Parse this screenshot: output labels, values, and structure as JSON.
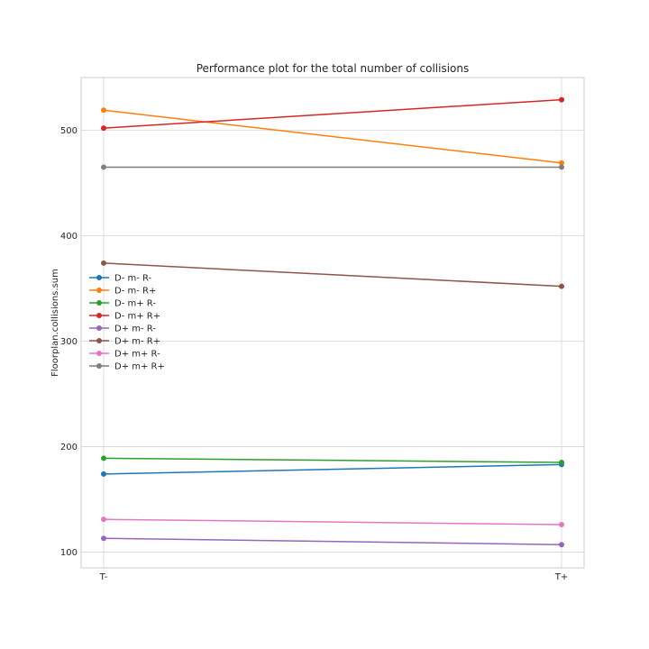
{
  "chart_data": {
    "type": "line",
    "title": "Performance plot for the total number of collisions",
    "xlabel": "",
    "ylabel": "Floorplan.collisions.sum",
    "categories": [
      "T-",
      "T+"
    ],
    "ylim": [
      85,
      550
    ],
    "yticks": [
      100,
      200,
      300,
      400,
      500
    ],
    "grid": true,
    "legend_position": "center-left",
    "series": [
      {
        "name": "D- m- R-",
        "values": [
          174,
          183
        ],
        "color": "#1f77b4"
      },
      {
        "name": "D- m- R+",
        "values": [
          519,
          469
        ],
        "color": "#ff7f0e"
      },
      {
        "name": "D- m+ R-",
        "values": [
          189,
          185
        ],
        "color": "#2ca02c"
      },
      {
        "name": "D- m+ R+",
        "values": [
          502,
          529
        ],
        "color": "#d62728"
      },
      {
        "name": "D+ m- R-",
        "values": [
          113,
          107
        ],
        "color": "#9467bd"
      },
      {
        "name": "D+ m- R+",
        "values": [
          374,
          352
        ],
        "color": "#8c564b"
      },
      {
        "name": "D+ m+ R-",
        "values": [
          131,
          126
        ],
        "color": "#e377c2"
      },
      {
        "name": "D+ m+ R+",
        "values": [
          465,
          465
        ],
        "color": "#7f7f7f"
      }
    ]
  }
}
